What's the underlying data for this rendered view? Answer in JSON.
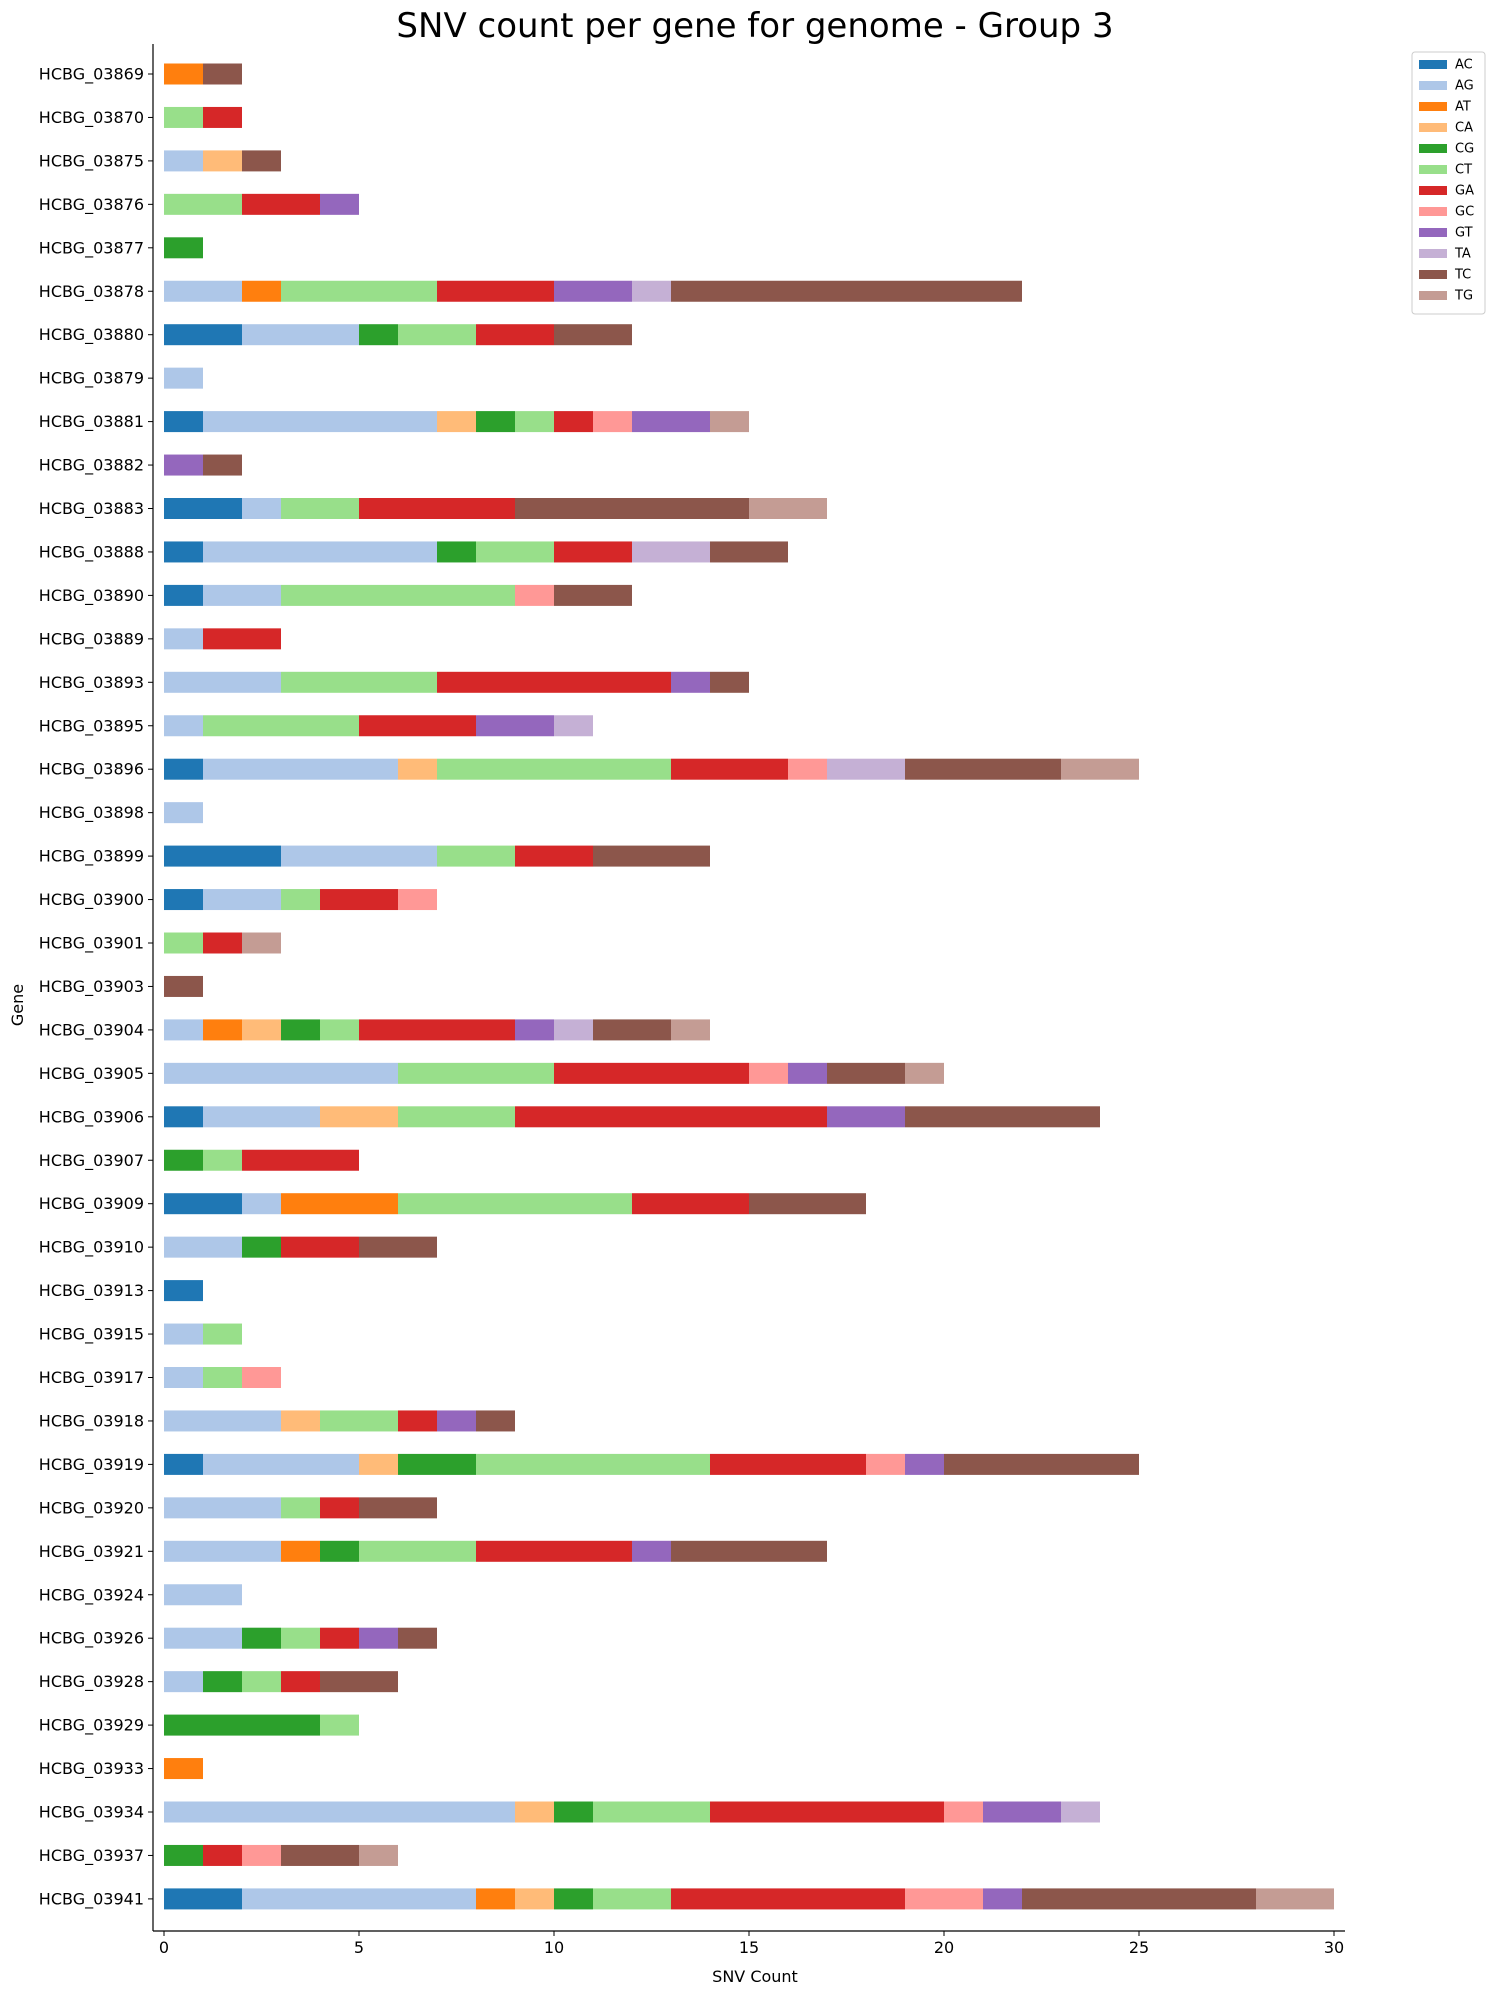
{
  "chart_data": {
    "type": "bar",
    "orientation": "horizontal",
    "stacked": true,
    "title": "SNV count per gene for genome - Group 3",
    "xlabel": "SNV Count",
    "ylabel": "Gene",
    "xlim": [
      0,
      30
    ],
    "xticks": [
      0,
      5,
      10,
      15,
      20,
      25,
      30
    ],
    "grid": false,
    "legend_position": "top-right",
    "categories": [
      "HCBG_03869",
      "HCBG_03870",
      "HCBG_03875",
      "HCBG_03876",
      "HCBG_03877",
      "HCBG_03878",
      "HCBG_03880",
      "HCBG_03879",
      "HCBG_03881",
      "HCBG_03882",
      "HCBG_03883",
      "HCBG_03888",
      "HCBG_03890",
      "HCBG_03889",
      "HCBG_03893",
      "HCBG_03895",
      "HCBG_03896",
      "HCBG_03898",
      "HCBG_03899",
      "HCBG_03900",
      "HCBG_03901",
      "HCBG_03903",
      "HCBG_03904",
      "HCBG_03905",
      "HCBG_03906",
      "HCBG_03907",
      "HCBG_03909",
      "HCBG_03910",
      "HCBG_03913",
      "HCBG_03915",
      "HCBG_03917",
      "HCBG_03918",
      "HCBG_03919",
      "HCBG_03920",
      "HCBG_03921",
      "HCBG_03924",
      "HCBG_03926",
      "HCBG_03928",
      "HCBG_03929",
      "HCBG_03933",
      "HCBG_03934",
      "HCBG_03937",
      "HCBG_03941"
    ],
    "series": [
      {
        "name": "AC",
        "color": "#1f77b4",
        "values": [
          0,
          0,
          0,
          0,
          0,
          0,
          2,
          0,
          1,
          0,
          2,
          1,
          1,
          0,
          0,
          0,
          1,
          0,
          3,
          1,
          0,
          0,
          0,
          0,
          1,
          0,
          2,
          0,
          1,
          0,
          0,
          0,
          1,
          0,
          0,
          0,
          0,
          0,
          0,
          0,
          0,
          0,
          2
        ]
      },
      {
        "name": "AG",
        "color": "#aec7e8",
        "values": [
          0,
          0,
          1,
          0,
          0,
          2,
          3,
          1,
          6,
          0,
          1,
          6,
          2,
          1,
          3,
          1,
          5,
          1,
          4,
          2,
          0,
          0,
          1,
          6,
          3,
          0,
          1,
          2,
          0,
          1,
          1,
          3,
          4,
          3,
          3,
          2,
          2,
          1,
          0,
          0,
          9,
          0,
          6
        ]
      },
      {
        "name": "AT",
        "color": "#ff7f0e",
        "values": [
          1,
          0,
          0,
          0,
          0,
          1,
          0,
          0,
          0,
          0,
          0,
          0,
          0,
          0,
          0,
          0,
          0,
          0,
          0,
          0,
          0,
          0,
          1,
          0,
          0,
          0,
          3,
          0,
          0,
          0,
          0,
          0,
          0,
          0,
          1,
          0,
          0,
          0,
          0,
          1,
          0,
          0,
          1
        ]
      },
      {
        "name": "CA",
        "color": "#ffbb78",
        "values": [
          0,
          0,
          1,
          0,
          0,
          0,
          0,
          0,
          1,
          0,
          0,
          0,
          0,
          0,
          0,
          0,
          1,
          0,
          0,
          0,
          0,
          0,
          1,
          0,
          2,
          0,
          0,
          0,
          0,
          0,
          0,
          1,
          1,
          0,
          0,
          0,
          0,
          0,
          0,
          0,
          1,
          0,
          1
        ]
      },
      {
        "name": "CG",
        "color": "#2ca02c",
        "values": [
          0,
          0,
          0,
          0,
          1,
          0,
          1,
          0,
          1,
          0,
          0,
          1,
          0,
          0,
          0,
          0,
          0,
          0,
          0,
          0,
          0,
          0,
          1,
          0,
          0,
          1,
          0,
          1,
          0,
          0,
          0,
          0,
          2,
          0,
          1,
          0,
          1,
          1,
          4,
          0,
          1,
          1,
          1
        ]
      },
      {
        "name": "CT",
        "color": "#98df8a",
        "values": [
          0,
          1,
          0,
          2,
          0,
          4,
          2,
          0,
          1,
          0,
          2,
          2,
          6,
          0,
          4,
          4,
          6,
          0,
          2,
          1,
          1,
          0,
          1,
          4,
          3,
          1,
          6,
          0,
          0,
          1,
          1,
          2,
          6,
          1,
          3,
          0,
          1,
          1,
          1,
          0,
          3,
          0,
          2
        ]
      },
      {
        "name": "GA",
        "color": "#d62728",
        "values": [
          0,
          1,
          0,
          2,
          0,
          3,
          2,
          0,
          1,
          0,
          4,
          2,
          0,
          2,
          6,
          3,
          3,
          0,
          2,
          2,
          1,
          0,
          4,
          5,
          8,
          3,
          3,
          2,
          0,
          0,
          0,
          1,
          4,
          1,
          4,
          0,
          1,
          1,
          0,
          0,
          6,
          1,
          6
        ]
      },
      {
        "name": "GC",
        "color": "#ff9896",
        "values": [
          0,
          0,
          0,
          0,
          0,
          0,
          0,
          0,
          1,
          0,
          0,
          0,
          1,
          0,
          0,
          0,
          1,
          0,
          0,
          1,
          0,
          0,
          0,
          1,
          0,
          0,
          0,
          0,
          0,
          0,
          1,
          0,
          1,
          0,
          0,
          0,
          0,
          0,
          0,
          0,
          1,
          1,
          2
        ]
      },
      {
        "name": "GT",
        "color": "#9467bd",
        "values": [
          0,
          0,
          0,
          1,
          0,
          2,
          0,
          0,
          2,
          1,
          0,
          0,
          0,
          0,
          1,
          2,
          0,
          0,
          0,
          0,
          0,
          0,
          1,
          1,
          2,
          0,
          0,
          0,
          0,
          0,
          0,
          1,
          1,
          0,
          1,
          0,
          1,
          0,
          0,
          0,
          2,
          0,
          1
        ]
      },
      {
        "name": "TA",
        "color": "#c5b0d5",
        "values": [
          0,
          0,
          0,
          0,
          0,
          1,
          0,
          0,
          0,
          0,
          0,
          2,
          0,
          0,
          0,
          1,
          2,
          0,
          0,
          0,
          0,
          0,
          1,
          0,
          0,
          0,
          0,
          0,
          0,
          0,
          0,
          0,
          0,
          0,
          0,
          0,
          0,
          0,
          0,
          0,
          1,
          0,
          0
        ]
      },
      {
        "name": "TC",
        "color": "#8c564b",
        "values": [
          1,
          0,
          1,
          0,
          0,
          9,
          2,
          0,
          0,
          1,
          6,
          2,
          2,
          0,
          1,
          0,
          4,
          0,
          3,
          0,
          0,
          1,
          2,
          2,
          5,
          0,
          3,
          2,
          0,
          0,
          0,
          1,
          5,
          2,
          4,
          0,
          1,
          2,
          0,
          0,
          0,
          2,
          6
        ]
      },
      {
        "name": "TG",
        "color": "#c49c94",
        "values": [
          0,
          0,
          0,
          0,
          0,
          0,
          0,
          0,
          1,
          0,
          2,
          0,
          0,
          0,
          0,
          0,
          2,
          0,
          0,
          0,
          1,
          0,
          1,
          1,
          0,
          0,
          0,
          0,
          0,
          0,
          0,
          0,
          0,
          0,
          0,
          0,
          0,
          0,
          0,
          0,
          0,
          1,
          2
        ]
      }
    ]
  }
}
